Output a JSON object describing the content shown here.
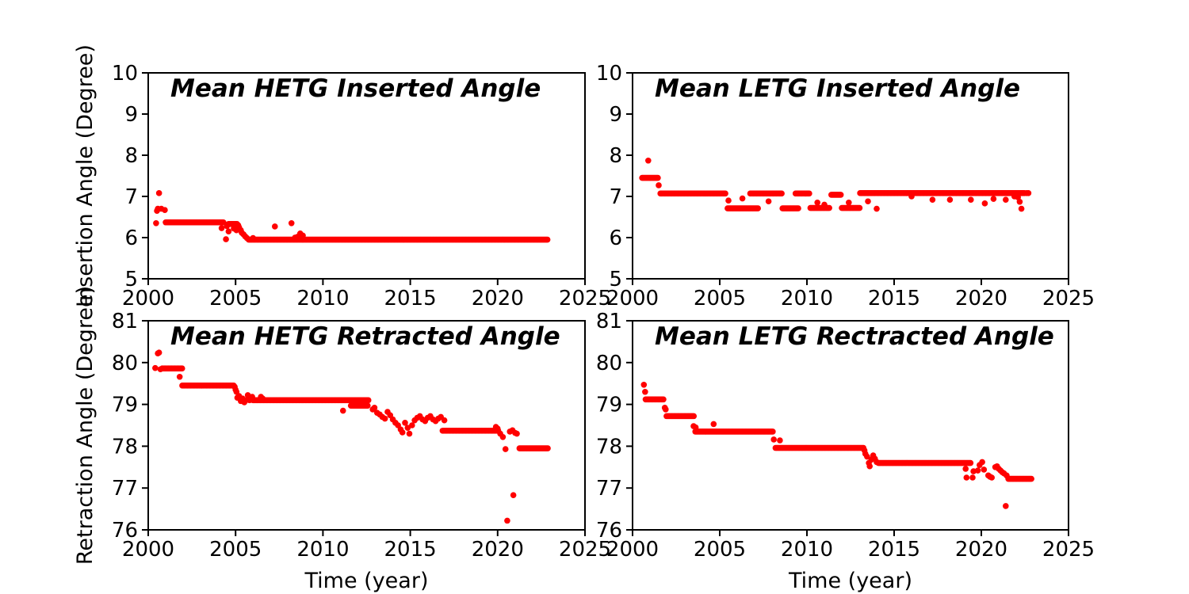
{
  "figure": {
    "background": "#ffffff",
    "frame_color": "#000000",
    "marker_color": "#ff0000",
    "marker_shape": "circle"
  },
  "chart_data": [
    {
      "id": "hetg-inserted",
      "type": "scatter",
      "title": "Mean HETG Inserted Angle",
      "xlabel": "",
      "ylabel": "Insertion Angle (Degree)",
      "xlim": [
        2000,
        2025
      ],
      "ylim": [
        5,
        10
      ],
      "xticks": [
        "2000",
        "2005",
        "2010",
        "2015",
        "2020",
        "2025"
      ],
      "yticks": [
        "5",
        "6",
        "7",
        "8",
        "9",
        "10"
      ],
      "grid": false,
      "legend": "none",
      "series_color": "#ff0000",
      "runs": [
        [
          2001.0,
          2004.35,
          6.37
        ],
        [
          2004.6,
          2005.1,
          6.33
        ],
        [
          2005.75,
          2022.85,
          5.95
        ]
      ],
      "points": [
        [
          2000.45,
          6.35
        ],
        [
          2000.5,
          6.65
        ],
        [
          2000.55,
          6.7
        ],
        [
          2000.62,
          7.08
        ],
        [
          2000.75,
          6.7
        ],
        [
          2000.95,
          6.67
        ],
        [
          2004.2,
          6.23
        ],
        [
          2004.45,
          5.96
        ],
        [
          2004.5,
          6.28
        ],
        [
          2004.6,
          6.15
        ],
        [
          2004.9,
          6.22
        ],
        [
          2005.05,
          6.18
        ],
        [
          2005.15,
          6.3
        ],
        [
          2005.2,
          6.25
        ],
        [
          2005.3,
          6.18
        ],
        [
          2005.35,
          6.12
        ],
        [
          2005.45,
          6.08
        ],
        [
          2005.55,
          6.03
        ],
        [
          2005.65,
          5.99
        ],
        [
          2006.0,
          5.99
        ],
        [
          2007.25,
          6.27
        ],
        [
          2008.2,
          6.35
        ],
        [
          2008.4,
          6.0
        ],
        [
          2008.55,
          6.02
        ],
        [
          2008.7,
          6.1
        ],
        [
          2008.85,
          6.05
        ]
      ]
    },
    {
      "id": "letg-inserted",
      "type": "scatter",
      "title": "Mean LETG Inserted Angle",
      "xlabel": "",
      "ylabel": "",
      "xlim": [
        2000,
        2025
      ],
      "ylim": [
        5,
        10
      ],
      "xticks": [
        "2000",
        "2005",
        "2010",
        "2015",
        "2020",
        "2025"
      ],
      "yticks": [
        "5",
        "6",
        "7",
        "8",
        "9",
        "10"
      ],
      "grid": false,
      "legend": "none",
      "series_color": "#ff0000",
      "runs": [
        [
          2000.55,
          2001.45,
          7.45
        ],
        [
          2001.6,
          2005.35,
          7.07
        ],
        [
          2005.45,
          2007.2,
          6.71
        ],
        [
          2006.75,
          2008.55,
          7.07
        ],
        [
          2008.6,
          2009.55,
          6.71
        ],
        [
          2009.35,
          2010.15,
          7.07
        ],
        [
          2010.2,
          2011.3,
          6.72
        ],
        [
          2011.4,
          2011.95,
          7.04
        ],
        [
          2012.0,
          2013.05,
          6.72
        ],
        [
          2013.05,
          2022.5,
          7.08
        ]
      ],
      "points": [
        [
          2000.9,
          7.87
        ],
        [
          2001.5,
          7.27
        ],
        [
          2005.5,
          6.9
        ],
        [
          2006.3,
          6.95
        ],
        [
          2007.8,
          6.88
        ],
        [
          2010.6,
          6.85
        ],
        [
          2011.0,
          6.8
        ],
        [
          2012.4,
          6.85
        ],
        [
          2013.5,
          6.88
        ],
        [
          2014.0,
          6.7
        ],
        [
          2016.0,
          7.0
        ],
        [
          2017.2,
          6.92
        ],
        [
          2018.2,
          6.92
        ],
        [
          2019.4,
          6.92
        ],
        [
          2020.2,
          6.83
        ],
        [
          2020.7,
          6.94
        ],
        [
          2021.4,
          6.92
        ],
        [
          2021.9,
          7.0
        ],
        [
          2022.1,
          6.98
        ],
        [
          2022.2,
          6.87
        ],
        [
          2022.3,
          6.7
        ],
        [
          2022.6,
          7.08
        ],
        [
          2022.7,
          7.08
        ]
      ]
    },
    {
      "id": "hetg-retracted",
      "type": "scatter",
      "title": "Mean HETG Retracted Angle",
      "xlabel": "Time (year)",
      "ylabel": "Retraction Angle (Degree)",
      "xlim": [
        2000,
        2025
      ],
      "ylim": [
        76,
        81
      ],
      "xticks": [
        "2000",
        "2005",
        "2010",
        "2015",
        "2020",
        "2025"
      ],
      "yticks": [
        "76",
        "77",
        "78",
        "79",
        "80",
        "81"
      ],
      "grid": false,
      "legend": "none",
      "series_color": "#ff0000",
      "runs": [
        [
          2000.8,
          2001.95,
          79.86
        ],
        [
          2001.95,
          2004.9,
          79.45
        ],
        [
          2006.0,
          2012.6,
          79.1
        ],
        [
          2011.6,
          2012.6,
          78.97
        ],
        [
          2016.85,
          2020.05,
          78.37
        ],
        [
          2021.25,
          2022.9,
          77.95
        ]
      ],
      "points": [
        [
          2000.4,
          79.87
        ],
        [
          2000.55,
          80.22
        ],
        [
          2000.62,
          80.24
        ],
        [
          2000.7,
          79.84
        ],
        [
          2001.8,
          79.66
        ],
        [
          2004.95,
          79.42
        ],
        [
          2005.0,
          79.35
        ],
        [
          2005.05,
          79.3
        ],
        [
          2005.1,
          79.16
        ],
        [
          2005.2,
          79.2
        ],
        [
          2005.3,
          79.08
        ],
        [
          2005.4,
          79.14
        ],
        [
          2005.5,
          79.05
        ],
        [
          2005.6,
          79.1
        ],
        [
          2005.7,
          79.22
        ],
        [
          2005.8,
          79.1
        ],
        [
          2005.95,
          79.18
        ],
        [
          2006.45,
          79.18
        ],
        [
          2006.55,
          79.14
        ],
        [
          2011.15,
          78.85
        ],
        [
          2012.85,
          78.88
        ],
        [
          2012.95,
          78.92
        ],
        [
          2013.1,
          78.8
        ],
        [
          2013.25,
          78.76
        ],
        [
          2013.4,
          78.7
        ],
        [
          2013.55,
          78.66
        ],
        [
          2013.7,
          78.82
        ],
        [
          2013.85,
          78.74
        ],
        [
          2014.0,
          78.64
        ],
        [
          2014.15,
          78.56
        ],
        [
          2014.3,
          78.5
        ],
        [
          2014.45,
          78.4
        ],
        [
          2014.55,
          78.33
        ],
        [
          2014.7,
          78.56
        ],
        [
          2014.85,
          78.44
        ],
        [
          2014.95,
          78.3
        ],
        [
          2015.1,
          78.5
        ],
        [
          2015.25,
          78.62
        ],
        [
          2015.4,
          78.68
        ],
        [
          2015.55,
          78.72
        ],
        [
          2015.7,
          78.64
        ],
        [
          2015.85,
          78.6
        ],
        [
          2016.0,
          78.68
        ],
        [
          2016.15,
          78.72
        ],
        [
          2016.3,
          78.64
        ],
        [
          2016.45,
          78.6
        ],
        [
          2016.6,
          78.66
        ],
        [
          2016.75,
          78.7
        ],
        [
          2016.95,
          78.62
        ],
        [
          2019.9,
          78.46
        ],
        [
          2020.0,
          78.42
        ],
        [
          2020.15,
          78.3
        ],
        [
          2020.3,
          78.22
        ],
        [
          2020.45,
          77.93
        ],
        [
          2020.55,
          76.22
        ],
        [
          2020.7,
          78.35
        ],
        [
          2020.85,
          78.38
        ],
        [
          2020.9,
          76.83
        ],
        [
          2021.0,
          78.32
        ],
        [
          2021.1,
          78.3
        ]
      ]
    },
    {
      "id": "letg-retracted",
      "type": "scatter",
      "title": "Mean LETG Rectracted Angle",
      "xlabel": "Time (year)",
      "ylabel": "",
      "xlim": [
        2000,
        2025
      ],
      "ylim": [
        76,
        81
      ],
      "xticks": [
        "2000",
        "2005",
        "2010",
        "2015",
        "2020",
        "2025"
      ],
      "yticks": [
        "76",
        "77",
        "78",
        "79",
        "80",
        "81"
      ],
      "grid": false,
      "legend": "none",
      "series_color": "#ff0000",
      "runs": [
        [
          2000.75,
          2001.8,
          79.12
        ],
        [
          2001.95,
          2003.55,
          78.72
        ],
        [
          2003.6,
          2008.05,
          78.35
        ],
        [
          2008.2,
          2013.25,
          77.96
        ],
        [
          2014.1,
          2019.4,
          77.6
        ],
        [
          2021.55,
          2022.9,
          77.22
        ]
      ],
      "points": [
        [
          2000.65,
          79.47
        ],
        [
          2000.72,
          79.3
        ],
        [
          2001.85,
          78.92
        ],
        [
          2001.9,
          78.88
        ],
        [
          2003.5,
          78.48
        ],
        [
          2003.62,
          78.45
        ],
        [
          2004.65,
          78.53
        ],
        [
          2008.1,
          78.16
        ],
        [
          2008.45,
          78.14
        ],
        [
          2013.3,
          77.9
        ],
        [
          2013.35,
          77.82
        ],
        [
          2013.45,
          77.75
        ],
        [
          2013.55,
          77.6
        ],
        [
          2013.6,
          77.52
        ],
        [
          2013.7,
          77.68
        ],
        [
          2013.8,
          77.78
        ],
        [
          2013.9,
          77.7
        ],
        [
          2014.0,
          77.62
        ],
        [
          2019.1,
          77.46
        ],
        [
          2019.15,
          77.25
        ],
        [
          2019.5,
          77.25
        ],
        [
          2019.55,
          77.4
        ],
        [
          2019.8,
          77.42
        ],
        [
          2019.9,
          77.55
        ],
        [
          2020.05,
          77.62
        ],
        [
          2020.15,
          77.44
        ],
        [
          2020.4,
          77.3
        ],
        [
          2020.5,
          77.27
        ],
        [
          2020.6,
          77.25
        ],
        [
          2020.8,
          77.5
        ],
        [
          2020.9,
          77.52
        ],
        [
          2021.0,
          77.46
        ],
        [
          2021.1,
          77.42
        ],
        [
          2021.2,
          77.38
        ],
        [
          2021.3,
          77.35
        ],
        [
          2021.4,
          76.57
        ],
        [
          2021.45,
          77.3
        ]
      ]
    }
  ]
}
